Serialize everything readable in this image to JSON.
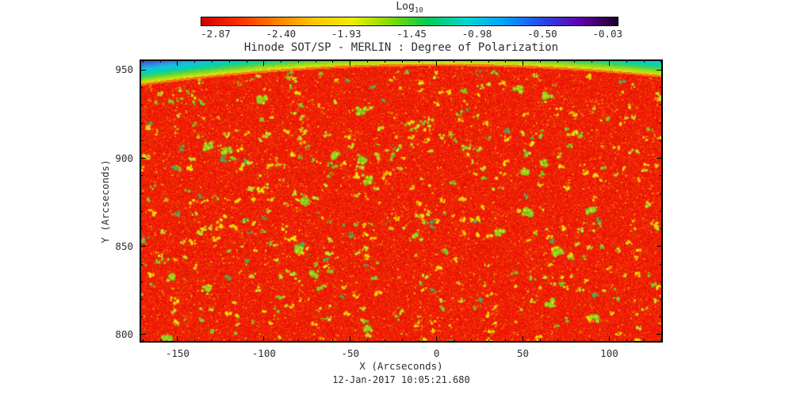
{
  "figure": {
    "title": "Hinode SOT/SP - MERLIN : Degree of Polarization",
    "xlabel": "X (Arcseconds)",
    "ylabel": "Y (Arcseconds)",
    "timestamp": "12-Jan-2017 10:05:21.680"
  },
  "colorbar": {
    "label_main": "Log",
    "label_sub": "10",
    "tick_labels": [
      "-2.87",
      "-2.40",
      "-1.93",
      "-1.45",
      "-0.98",
      "-0.50",
      "-0.03"
    ]
  },
  "chart_data": {
    "type": "heatmap",
    "title": "Hinode SOT/SP - MERLIN : Degree of Polarization",
    "xlabel": "X (Arcseconds)",
    "ylabel": "Y (Arcseconds)",
    "observation_time": "12-Jan-2017 10:05:21.680",
    "xlim": [
      -172,
      131
    ],
    "ylim": [
      795.5,
      956
    ],
    "x_ticks": [
      -150,
      -100,
      -50,
      0,
      50,
      100
    ],
    "y_ticks": [
      800,
      850,
      900,
      950
    ],
    "minor_tick_step": 10,
    "grid": false,
    "colorbar": {
      "label": "Log10",
      "scale": "log10 of degree of polarization",
      "ticks": [
        -2.87,
        -2.4,
        -1.93,
        -1.45,
        -0.98,
        -0.5,
        -0.03
      ],
      "range": [
        -2.87,
        -0.03
      ],
      "orientation": "horizontal",
      "position": "top"
    },
    "limb": {
      "apex_y_arcsec": 954.5,
      "curvature": 0.000385,
      "note": "curved solar limb crossing the top of the field of view"
    },
    "content_summary": {
      "on_disk": "quiet-Sun disk dominated by low polarization, log10 ~ -2.8 (red), with scattered small magnetic patches at log10 ~ -2.0 to -1.4 (yellow-green speckles)",
      "off_limb": "above the curved limb the value rises smoothly through green, cyan and blue toward the upper corners"
    }
  },
  "palette": {
    "background": "#ffffff",
    "axis_color": "#000000",
    "text_color": "#2e2e2e",
    "colorbar_stops": [
      "#d40000",
      "#ff3000",
      "#ff8000",
      "#ffc800",
      "#eeee00",
      "#80dc00",
      "#00cc55",
      "#00d8cc",
      "#00a2ff",
      "#2a48e8",
      "#6000b0",
      "#1c0026"
    ],
    "disk_base": "#ee2e00",
    "speckle_colors": [
      "#f0e400",
      "#bce428",
      "#7cd024",
      "#3cb85c"
    ],
    "speckle_grain": [
      "#ff9000",
      "#ffc800",
      "#e8e000"
    ],
    "offlimb_ramp": [
      "#c8e400",
      "#54d24a",
      "#00d4a8",
      "#18c2e6",
      "#2f86e0",
      "#3a5ad0"
    ],
    "rim_color": "#b4dc14"
  }
}
